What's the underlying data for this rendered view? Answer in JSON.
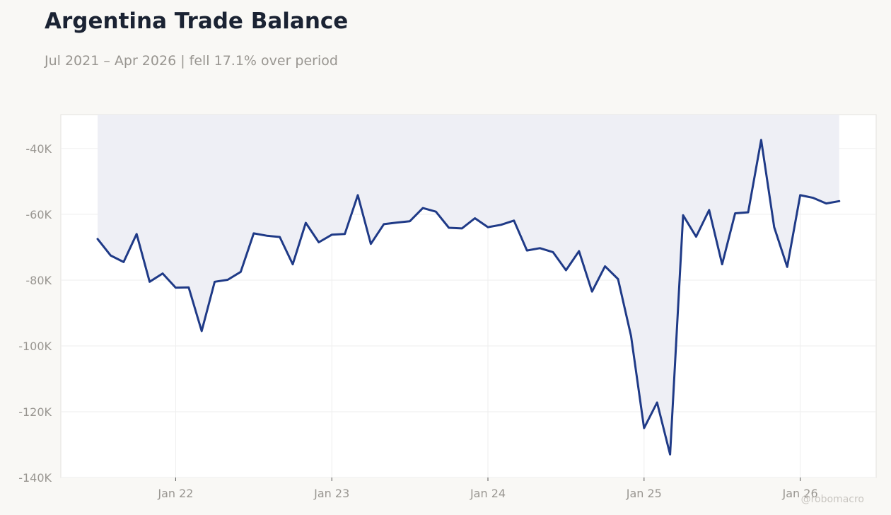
{
  "title": "Argentina Trade Balance",
  "subtitle": "Jul 2021 – Apr 2026 | fell 17.1% over period",
  "watermark": "@robomacro",
  "chart_data": {
    "type": "area",
    "title": "Argentina Trade Balance",
    "subtitle": "Jul 2021 – Apr 2026 | fell 17.1% over period",
    "xlabel": "",
    "ylabel": "",
    "x_start": "2021-07",
    "x_ticks": [
      "Jan 22",
      "Jan 23",
      "Jan 24",
      "Jan 25",
      "Jan 26"
    ],
    "y_ticks": [
      "-40K",
      "-60K",
      "-80K",
      "-100K",
      "-120K",
      "-140K"
    ],
    "ylim": [
      -140000,
      -29700
    ],
    "grid": true,
    "legend": "none",
    "colors": {
      "line": "#1f3a87",
      "fill": "#eeeff5",
      "grid": "#eeeeee"
    },
    "series": [
      {
        "values": [
          -67500,
          -72500,
          -74500,
          -66000,
          -80500,
          -78000,
          -82300,
          -82200,
          -95500,
          -80500,
          -79900,
          -77500,
          -65800,
          -66500,
          -66900,
          -75200,
          -62600,
          -68500,
          -66200,
          -66000,
          -54200,
          -69000,
          -63000,
          -62500,
          -62100,
          -58100,
          -59200,
          -64100,
          -64300,
          -61200,
          -63900,
          -63200,
          -61900,
          -71000,
          -70300,
          -71500,
          -77000,
          -71200,
          -83500,
          -75800,
          -79700,
          -97000,
          -125000,
          -117200,
          -133000,
          -60300,
          -66800,
          -58700,
          -75200,
          -59700,
          -59400,
          -37400,
          -63900,
          -76000,
          -54200,
          -55000,
          -56700,
          -56000
        ]
      }
    ]
  }
}
